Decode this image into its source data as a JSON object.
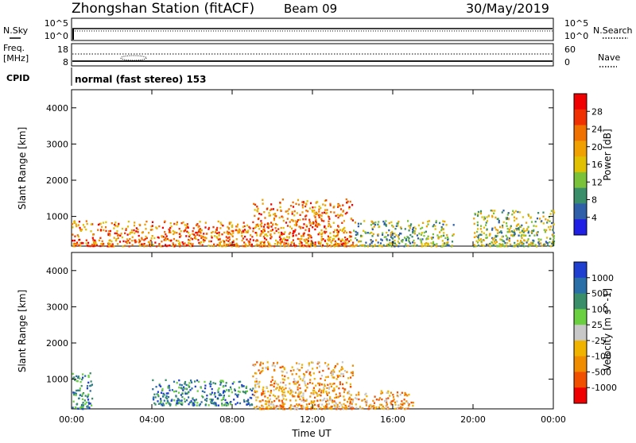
{
  "header": {
    "station": "Zhongshan Station (fitACF)",
    "beam": "Beam 09",
    "date": "30/May/2019"
  },
  "labels": {
    "nsky": "N.Sky",
    "nsearch": "N.Search",
    "freq_top": "Freq.",
    "freq_unit": "[MHz]",
    "nave": "Nave",
    "cpid": "CPID",
    "cpid_value": "normal (fast stereo) 153",
    "xlabel": "Time UT"
  },
  "axis_ticks": {
    "nsky_left": [
      "10^5",
      "10^0"
    ],
    "nsky_right": [
      "10^5",
      "10^0"
    ],
    "freq_left": [
      "18",
      "8"
    ],
    "nave_right": [
      "60",
      "0"
    ],
    "x_ticks": [
      "00:00",
      "04:00",
      "08:00",
      "12:00",
      "16:00",
      "20:00",
      "00:00"
    ]
  },
  "colors": {
    "power": [
      "#1f1fe6",
      "#2e5fa8",
      "#3a8f6a",
      "#7ac23a",
      "#e0c000",
      "#f0a000",
      "#f07000",
      "#f03000",
      "#f00000"
    ],
    "velocity": [
      "#f00000",
      "#f05000",
      "#f08c00",
      "#f0b400",
      "#c8c8c8",
      "#6ad040",
      "#3a8f6a",
      "#2a6fa8",
      "#1f3fd0"
    ]
  },
  "chart_data": [
    {
      "type": "heatmap",
      "name": "power",
      "ylabel": "Slant Range [km]",
      "yticks": [
        1000,
        2000,
        3000,
        4000
      ],
      "ylim": [
        180,
        4500
      ],
      "xlim_hours": [
        0,
        24
      ],
      "colorbar_label": "Power [dB]",
      "colorbar_ticks": [
        "4",
        "8",
        "12",
        "16",
        "20",
        "24",
        "28"
      ],
      "colorbar_range": [
        0,
        30
      ],
      "series_summary": [
        {
          "hours": [
            0,
            9
          ],
          "range_km": [
            200,
            900
          ],
          "level": "high"
        },
        {
          "hours": [
            9,
            14
          ],
          "range_km": [
            200,
            1500
          ],
          "level": "high"
        },
        {
          "hours": [
            14,
            19
          ],
          "range_km": [
            200,
            900
          ],
          "level": "medium"
        },
        {
          "hours": [
            20,
            24
          ],
          "range_km": [
            200,
            1200
          ],
          "level": "medium"
        }
      ]
    },
    {
      "type": "heatmap",
      "name": "velocity",
      "ylabel": "Slant Range [km]",
      "yticks": [
        1000,
        2000,
        3000,
        4000
      ],
      "ylim": [
        180,
        4500
      ],
      "xlim_hours": [
        0,
        24
      ],
      "colorbar_label": "Velocity [m s^-1]",
      "colorbar_ticks": [
        "1000",
        "500",
        "100",
        "25",
        "-25",
        "-100",
        "-500",
        "-1000"
      ],
      "colorbar_range": [
        -1000,
        1000
      ],
      "series_summary": [
        {
          "hours": [
            0,
            1
          ],
          "range_km": [
            200,
            1200
          ],
          "level": "positive"
        },
        {
          "hours": [
            4,
            9
          ],
          "range_km": [
            300,
            1000
          ],
          "level": "positive"
        },
        {
          "hours": [
            9,
            14
          ],
          "range_km": [
            200,
            1500
          ],
          "level": "negative"
        },
        {
          "hours": [
            14,
            17
          ],
          "range_km": [
            200,
            700
          ],
          "level": "negative"
        }
      ]
    }
  ]
}
